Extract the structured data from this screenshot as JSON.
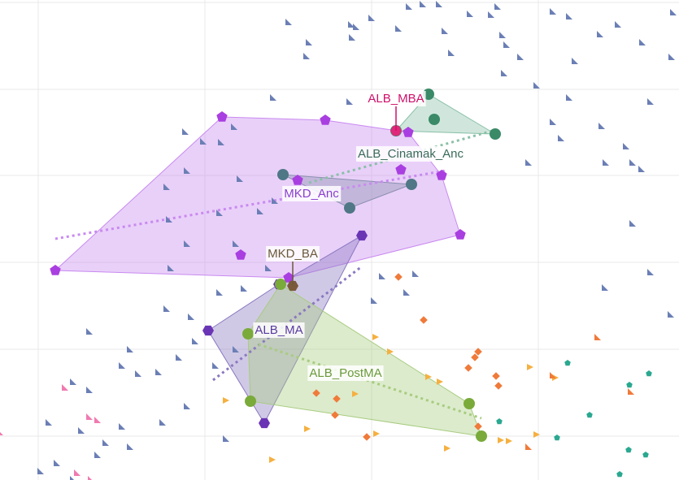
{
  "chart_data": {
    "type": "scatter",
    "xlim": [
      0,
      835
    ],
    "ylim": [
      591,
      0
    ],
    "xticks": [
      47,
      252,
      457,
      662
    ],
    "yticks": [
      3,
      110,
      216,
      323,
      430,
      537
    ],
    "grid": true,
    "series": [
      {
        "color": "#6b7fb5",
        "marker": "tri",
        "size": 4,
        "x": [
          355,
          380,
          377,
          432,
          433,
          438,
          457,
          490,
          503,
          520,
          540,
          547,
          555,
          578,
          604,
          612,
          618,
          623,
          640,
          680,
          700,
          738,
          760,
          790,
          826,
          707,
          620,
          660,
          700,
          680,
          690,
          740,
          770,
          778,
          789,
          745,
          650,
          800,
          336,
          430,
          228,
          250,
          288,
          272,
          230,
          295,
          205,
          338,
          270,
          208,
          320,
          230,
          290,
          210,
          270,
          300,
          330,
          205,
          235,
          220,
          240,
          265,
          195,
          160,
          110,
          150,
          170,
          90,
          110,
          60,
          100,
          130,
          160,
          120,
          70,
          50,
          90,
          230,
          200,
          150,
          278,
          290,
          744,
          825,
          800,
          778,
          511,
          500,
          460,
          470,
          828
        ],
        "y": [
          27,
          52,
          69,
          30,
          46,
          33,
          22,
          35,
          8,
          5,
          5,
          38,
          65,
          17,
          18,
          8,
          43,
          55,
          70,
          14,
          20,
          42,
          30,
          52,
          70,
          75,
          90,
          105,
          120,
          150,
          170,
          155,
          180,
          200,
          208,
          200,
          200,
          125,
          120,
          125,
          162,
          174,
          156,
          175,
          210,
          220,
          230,
          247,
          262,
          270,
          260,
          300,
          300,
          330,
          360,
          355,
          330,
          380,
          390,
          440,
          420,
          450,
          458,
          430,
          408,
          450,
          460,
          470,
          480,
          520,
          530,
          545,
          550,
          560,
          570,
          580,
          590,
          500,
          520,
          525,
          540,
          430,
          354,
          387,
          335,
          275,
          337,
          360,
          370,
          340,
          15
        ]
      },
      {
        "color": "#f07a3a",
        "marker": "diamond",
        "size": 4,
        "x": [
          490,
          521,
          588,
          584,
          576,
          610,
          613,
          389,
          414,
          412,
          451,
          588
        ],
        "y": [
          341,
          394,
          433,
          440,
          453,
          463,
          475,
          484,
          491,
          511,
          538,
          525
        ]
      },
      {
        "color": "#f5b040",
        "marker": "rtri",
        "size": 4,
        "x": [
          462,
          480,
          527,
          541,
          652,
          683,
          660,
          616,
          626,
          550,
          463,
          378,
          335,
          437,
          278
        ],
        "y": [
          415,
          433,
          464,
          470,
          452,
          465,
          535,
          542,
          543,
          552,
          534,
          528,
          566,
          485,
          493
        ]
      },
      {
        "color": "#f07a3a",
        "marker": "tri",
        "size": 4,
        "x": [
          735,
          680,
          776,
          650
        ],
        "y": [
          415,
          462,
          482,
          550
        ]
      },
      {
        "color": "#2aa890",
        "marker": "pent",
        "size": 4,
        "x": [
          698,
          774,
          798,
          725,
          685,
          614,
          773,
          794,
          762
        ],
        "y": [
          447,
          474,
          460,
          511,
          539,
          519,
          554,
          560,
          584
        ]
      },
      {
        "color": "#f07ab0",
        "marker": "tri",
        "size": 4,
        "x": [
          80,
          120,
          110,
          0,
          95,
          112
        ],
        "y": [
          477,
          517,
          513,
          532,
          582,
          590
        ]
      },
      {
        "color": "#a93fe0",
        "marker": "pent",
        "size": 7,
        "hull": true,
        "hull_color": "#c98af0",
        "x": [
          273,
          400,
          502,
          493,
          543,
          366,
          566,
          296,
          68,
          355
        ],
        "y": [
          144,
          148,
          163,
          209,
          216,
          222,
          289,
          314,
          333,
          342
        ],
        "trend": {
          "x": [
            68,
            548
          ],
          "y": [
            294,
            210
          ]
        }
      },
      {
        "color": "#4f7785",
        "marker": "circle",
        "size": 7,
        "hull": true,
        "hull_color": "#8a8fb0",
        "x": [
          348,
          506,
          430
        ],
        "y": [
          215,
          227,
          256
        ]
      },
      {
        "color": "#3a8a68",
        "marker": "circle",
        "size": 7,
        "hull": true,
        "hull_color": "#8ac0a8",
        "x": [
          527,
          534,
          609,
          487
        ],
        "y": [
          116,
          147,
          165,
          161
        ],
        "trend": {
          "x": [
            380,
            609
          ],
          "y": [
            225,
            160
          ]
        }
      },
      {
        "color": "#e0287a",
        "marker": "hex",
        "size": 7,
        "x": [
          487
        ],
        "y": [
          161
        ]
      },
      {
        "color": "#7a5a3a",
        "marker": "hex",
        "size": 7,
        "x": [
          360
        ],
        "y": [
          352
        ]
      },
      {
        "color": "#6a35b5",
        "marker": "hex",
        "size": 7,
        "hull": true,
        "hull_color": "#8a78c0",
        "x": [
          445,
          256,
          325,
          343
        ],
        "y": [
          290,
          407,
          521,
          350
        ],
        "trend": {
          "x": [
            262,
            445
          ],
          "y": [
            468,
            328
          ]
        }
      },
      {
        "color": "#7aaa3a",
        "marker": "circle",
        "size": 7,
        "hull": true,
        "hull_color": "#a8cc80",
        "x": [
          345,
          305,
          308,
          577,
          592
        ],
        "y": [
          350,
          411,
          494,
          497,
          537
        ],
        "trend": {
          "x": [
            318,
            592
          ],
          "y": [
            424,
            515
          ]
        }
      }
    ],
    "annotations": [
      {
        "text": "ALB_MBA",
        "x": 487,
        "y": 122,
        "color": "#d0106a",
        "ax": 487,
        "ay": 161
      },
      {
        "text": "ALB_Cinamak_Anc",
        "x": 505,
        "y": 190,
        "color": "#3a6a5a"
      },
      {
        "text": "MKD_Anc",
        "x": 383,
        "y": 239,
        "color": "#8a3ed0"
      },
      {
        "text": "MKD_BA",
        "x": 360,
        "y": 313,
        "color": "#6a5a3a",
        "ax": 360,
        "ay": 352
      },
      {
        "text": "ALB_MA",
        "x": 343,
        "y": 407,
        "color": "#5a3aa0"
      },
      {
        "text": "ALB_PostMA",
        "x": 425,
        "y": 460,
        "color": "#6a9a3a"
      }
    ]
  }
}
